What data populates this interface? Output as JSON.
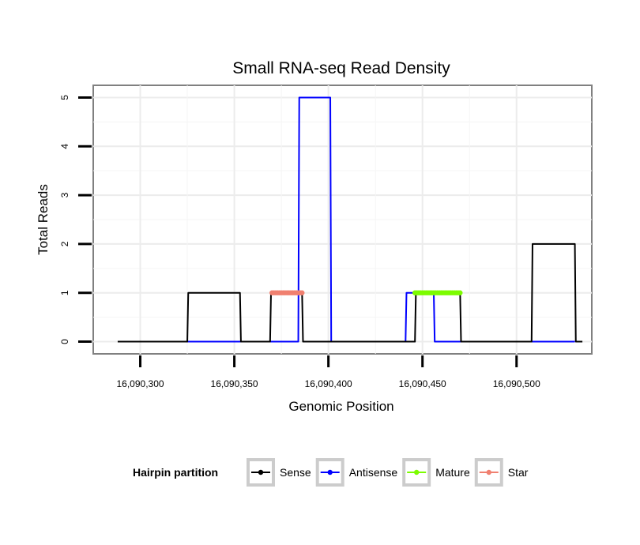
{
  "chart_data": {
    "type": "line",
    "title": "Small RNA-seq Read Density",
    "xlabel": "Genomic Position",
    "ylabel": "Total Reads",
    "xlim": [
      16090275,
      16090540
    ],
    "ylim": [
      -0.25,
      5.25
    ],
    "x_ticks": [
      16090300,
      16090350,
      16090400,
      16090450,
      16090500
    ],
    "x_tick_labels": [
      "16,090,300",
      "16,090,350",
      "16,090,400",
      "16,090,450",
      "16,090,500"
    ],
    "y_ticks": [
      0,
      1,
      2,
      3,
      4,
      5
    ],
    "y_tick_labels": [
      "0",
      "1",
      "2",
      "3",
      "4",
      "5"
    ],
    "grid": true,
    "legend": {
      "title": "Hairpin partition",
      "placement": "bottom",
      "entries": [
        "Sense",
        "Antisense",
        "Mature",
        "Star"
      ]
    },
    "series": [
      {
        "name": "Sense",
        "color": "#000000",
        "x": [
          16090288,
          16090325,
          16090325.5,
          16090353,
          16090353.5,
          16090369,
          16090369.5,
          16090386,
          16090386.5,
          16090446,
          16090446.5,
          16090470,
          16090470.5,
          16090508,
          16090508.5,
          16090531,
          16090531.5,
          16090535
        ],
        "y": [
          0,
          0,
          1,
          1,
          0,
          0,
          1,
          1,
          0,
          0,
          1,
          1,
          0,
          0,
          2,
          2,
          0,
          0
        ]
      },
      {
        "name": "Antisense",
        "color": "#0000ff",
        "x": [
          16090325,
          16090353,
          16090353.5,
          16090384,
          16090384.5,
          16090401,
          16090401.5,
          16090441,
          16090441.5,
          16090456,
          16090456.5,
          16090531
        ],
        "y": [
          0,
          0,
          0,
          0,
          5,
          5,
          0,
          0,
          1,
          1,
          0,
          0
        ]
      },
      {
        "name": "Mature",
        "color": "#7cfc00",
        "x": [
          16090446,
          16090447,
          16090448,
          16090449,
          16090450,
          16090451,
          16090452,
          16090453,
          16090454,
          16090455,
          16090456,
          16090457,
          16090458,
          16090459,
          16090460,
          16090461,
          16090462,
          16090463,
          16090464,
          16090465,
          16090466,
          16090467,
          16090468,
          16090469,
          16090470
        ],
        "y": [
          1,
          1,
          1,
          1,
          1,
          1,
          1,
          1,
          1,
          1,
          1,
          1,
          1,
          1,
          1,
          1,
          1,
          1,
          1,
          1,
          1,
          1,
          1,
          1,
          1
        ]
      },
      {
        "name": "Star",
        "color": "#f08070",
        "x": [
          16090370,
          16090371,
          16090372,
          16090373,
          16090374,
          16090375,
          16090376,
          16090377,
          16090378,
          16090379,
          16090380,
          16090381,
          16090382,
          16090383,
          16090384,
          16090385,
          16090386
        ],
        "y": [
          1,
          1,
          1,
          1,
          1,
          1,
          1,
          1,
          1,
          1,
          1,
          1,
          1,
          1,
          1,
          1,
          1
        ]
      }
    ]
  }
}
